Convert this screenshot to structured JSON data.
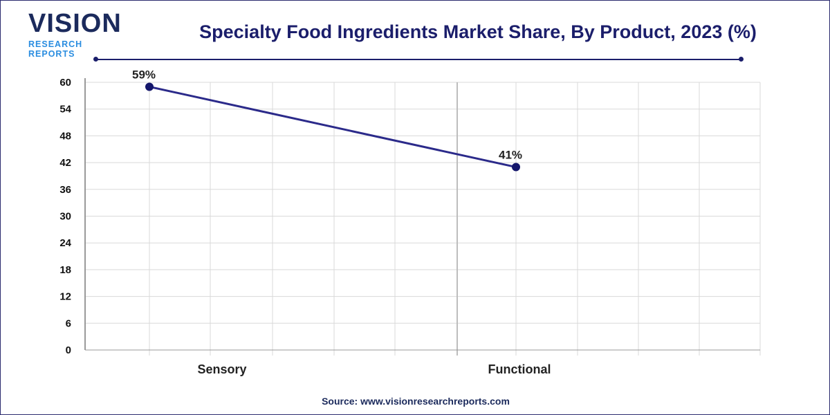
{
  "logo": {
    "line1": "VISION",
    "line2": "RESEARCH REPORTS"
  },
  "source": "Source: www.visionresearchreports.com",
  "colors": {
    "line": "#2b2a8a",
    "marker": "#14166b",
    "title": "#1b1e6b",
    "grid": "#d9d9d9"
  },
  "chart_data": {
    "type": "line",
    "title": "Specialty Food Ingredients Market Share, By Product, 2023 (%)",
    "categories": [
      "Sensory",
      "Functional"
    ],
    "values": [
      59,
      41
    ],
    "data_labels": [
      "59%",
      "41%"
    ],
    "yticks": [
      0,
      6,
      12,
      18,
      24,
      30,
      36,
      42,
      48,
      54,
      60
    ],
    "ylim": [
      0,
      60
    ],
    "grid": true,
    "legend": "none"
  }
}
